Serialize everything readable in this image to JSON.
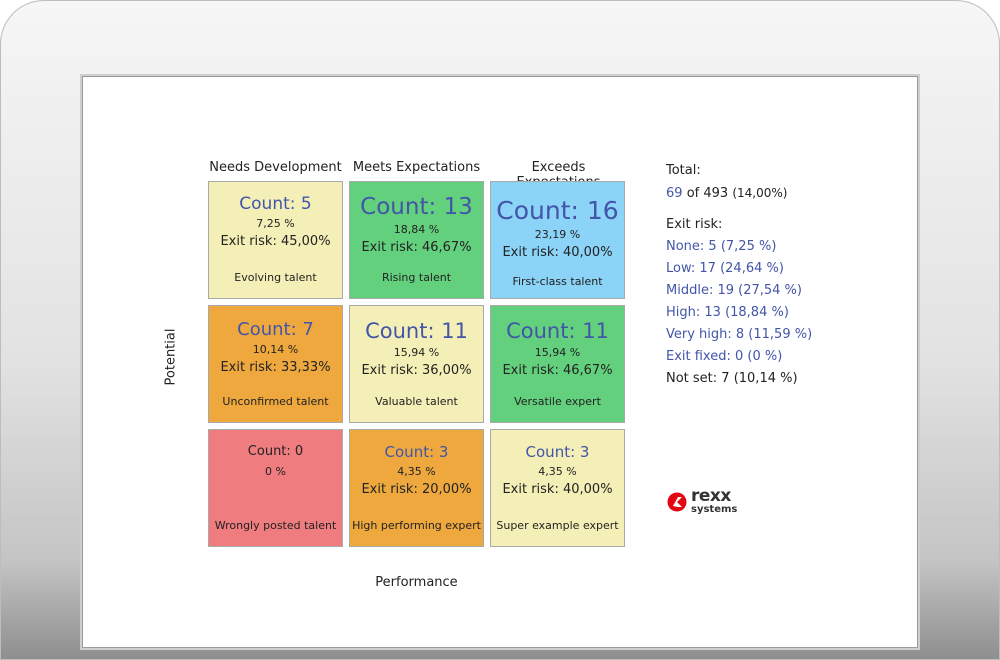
{
  "columns": [
    "Needs Development",
    "Meets Expectations",
    "Exceeds Expectations"
  ],
  "axes": {
    "y": "Potential",
    "x": "Performance"
  },
  "cells": [
    {
      "count": "Count: 5",
      "pct": "7,25 %",
      "risk": "Exit risk: 45,00%",
      "name": "Evolving talent",
      "color": "#f4efb7"
    },
    {
      "count": "Count: 13",
      "pct": "18,84 %",
      "risk": "Exit risk: 46,67%",
      "name": "Rising talent",
      "color": "#63d07e"
    },
    {
      "count": "Count: 16",
      "pct": "23,19 %",
      "risk": "Exit risk: 40,00%",
      "name": "First-class talent",
      "color": "#8bd3f7"
    },
    {
      "count": "Count: 7",
      "pct": "10,14 %",
      "risk": "Exit risk: 33,33%",
      "name": "Unconfirmed talent",
      "color": "#eea83e"
    },
    {
      "count": "Count: 11",
      "pct": "15,94 %",
      "risk": "Exit risk: 36,00%",
      "name": "Valuable talent",
      "color": "#f4efb7"
    },
    {
      "count": "Count: 11",
      "pct": "15,94 %",
      "risk": "Exit risk: 46,67%",
      "name": "Versatile expert",
      "color": "#63d07e"
    },
    {
      "count": "Count: 0",
      "pct": "0 %",
      "risk": "",
      "name": "Wrongly posted talent",
      "color": "#ef7c7e"
    },
    {
      "count": "Count: 3",
      "pct": "4,35 %",
      "risk": "Exit risk: 20,00%",
      "name": "High performing expert",
      "color": "#eea83e"
    },
    {
      "count": "Count: 3",
      "pct": "4,35 %",
      "risk": "Exit risk: 40,00%",
      "name": "Super example expert",
      "color": "#f4efb7"
    }
  ],
  "summary": {
    "total_label": "Total:",
    "total_selected": "69",
    "total_of": "of 493",
    "total_pct": "(14,00%)",
    "exit_risk_label": "Exit risk:",
    "items": [
      "None: 5 (7,25 %)",
      "Low: 17 (24,64 %)",
      "Middle: 19 (27,54 %)",
      "High: 13 (18,84 %)",
      "Very high: 8 (11,59 %)",
      "Exit fixed: 0 (0 %)",
      "Not set: 7 (10,14 %)"
    ]
  },
  "logo": {
    "line1": "rexx",
    "line2": "systems",
    "color": "#e30613"
  }
}
